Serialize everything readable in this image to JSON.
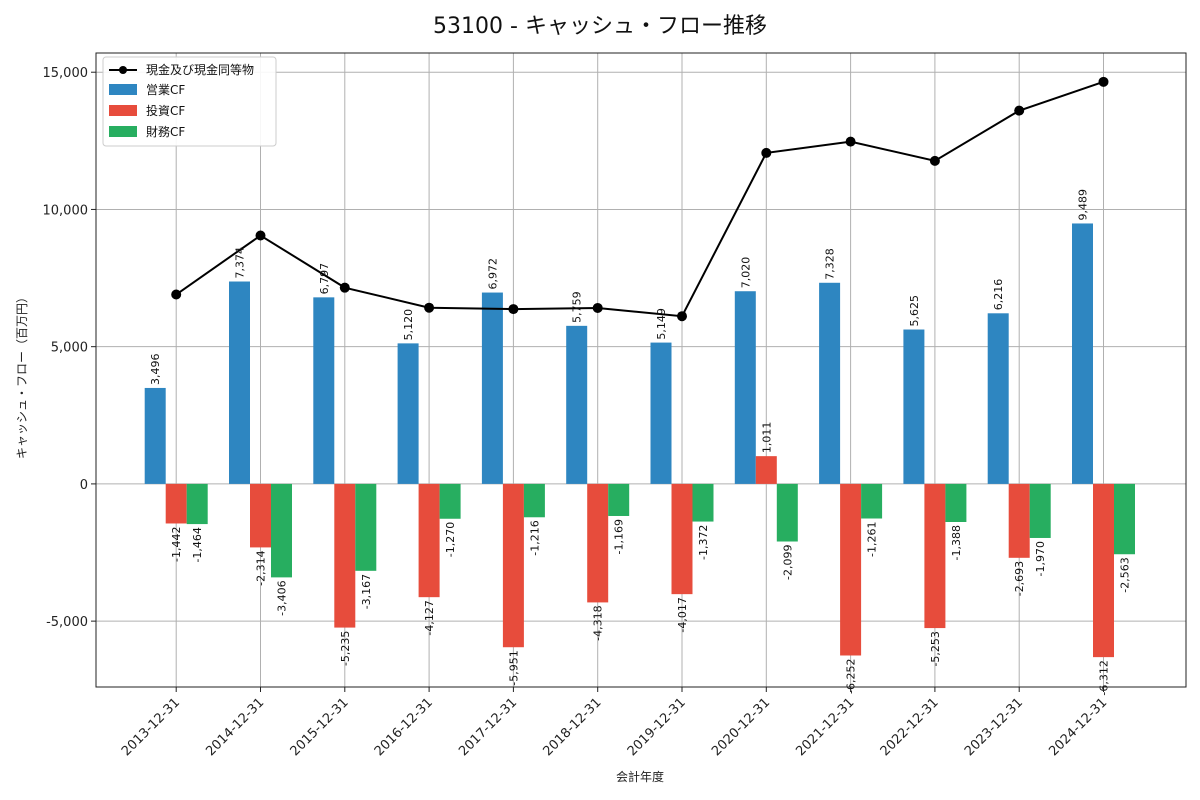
{
  "chart_data": {
    "type": "bar",
    "title": "53100 - キャッシュ・フロー推移",
    "xlabel": "会計年度",
    "ylabel": "キャッシュ・フロー（百万円）",
    "ylim": [
      -7400,
      15700
    ],
    "yticks": [
      -5000,
      0,
      5000,
      10000,
      15000
    ],
    "ytick_labels": [
      "-5,000",
      "0",
      "5,000",
      "10,000",
      "15,000"
    ],
    "grid": true,
    "legend_position": "top-left",
    "categories": [
      "2013-12-31",
      "2014-12-31",
      "2015-12-31",
      "2016-12-31",
      "2017-12-31",
      "2018-12-31",
      "2019-12-31",
      "2020-12-31",
      "2021-12-31",
      "2022-12-31",
      "2023-12-31",
      "2024-12-31"
    ],
    "series": [
      {
        "name": "営業CF",
        "type": "bar",
        "color": "#2e86c1",
        "values": [
          3496,
          7374,
          6797,
          5120,
          6972,
          5759,
          5149,
          7020,
          7328,
          5625,
          6216,
          9489
        ],
        "labels": [
          "3,496",
          "7,374",
          "6,797",
          "5,120",
          "6,972",
          "5,759",
          "5,149",
          "7,020",
          "7,328",
          "5,625",
          "6,216",
          "9,489"
        ]
      },
      {
        "name": "投資CF",
        "type": "bar",
        "color": "#e74c3c",
        "values": [
          -1442,
          -2314,
          -5235,
          -4127,
          -5951,
          -4318,
          -4017,
          1011,
          -6252,
          -5253,
          -2693,
          -6312
        ],
        "labels": [
          "-1,442",
          "-2,314",
          "-5,235",
          "-4,127",
          "-5,951",
          "-4,318",
          "-4,017",
          "1,011",
          "-6,252",
          "-5,253",
          "-2,693",
          "-6,312"
        ]
      },
      {
        "name": "財務CF",
        "type": "bar",
        "color": "#27ae60",
        "values": [
          -1464,
          -3406,
          -3167,
          -1270,
          -1216,
          -1169,
          -1372,
          -2099,
          -1261,
          -1388,
          -1970,
          -2563
        ],
        "labels": [
          "-1,464",
          "-3,406",
          "-3,167",
          "-1,270",
          "-1,216",
          "-1,169",
          "-1,372",
          "-2,099",
          "-1,261",
          "-1,388",
          "-1,970",
          "-2,563"
        ]
      }
    ],
    "line_series": {
      "name": "現金及び現金同等物",
      "type": "line",
      "color": "#000000",
      "values": [
        6900,
        9050,
        7150,
        6420,
        6370,
        6410,
        6110,
        12060,
        12470,
        11770,
        13600,
        14650
      ]
    }
  }
}
